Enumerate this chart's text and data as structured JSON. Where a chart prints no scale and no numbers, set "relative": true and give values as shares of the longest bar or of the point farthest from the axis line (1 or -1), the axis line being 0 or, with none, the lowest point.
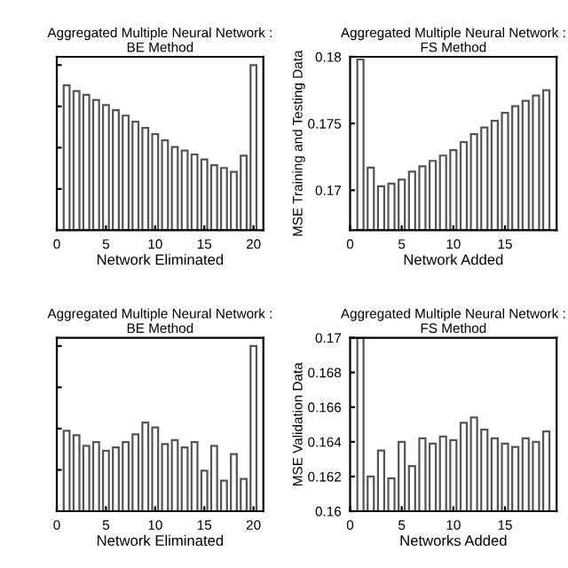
{
  "chart_data": [
    {
      "type": "bar",
      "title": "Aggregated Multiple Neural Network :\nBE Method",
      "xlabel": "Network Eliminated",
      "relative": true,
      "tick_labels": "x",
      "x": [
        1,
        2,
        3,
        4,
        5,
        6,
        7,
        8,
        9,
        10,
        11,
        12,
        13,
        14,
        15,
        16,
        17,
        18,
        19,
        20
      ],
      "xlim": [
        0,
        21
      ],
      "xticks": [
        0,
        5,
        10,
        15,
        20
      ],
      "color": "#ffffff",
      "values": [
        0.877,
        0.843,
        0.82,
        0.789,
        0.758,
        0.727,
        0.694,
        0.657,
        0.619,
        0.582,
        0.544,
        0.504,
        0.483,
        0.459,
        0.429,
        0.394,
        0.377,
        0.354,
        0.452,
        1
      ]
    },
    {
      "type": "bar",
      "title": "Aggregated Multiple Neural Network :\nFS Method",
      "xlabel": "Network Added",
      "ylabel": "MSE Training and Testing Data",
      "x": [
        1,
        2,
        3,
        4,
        5,
        6,
        7,
        8,
        9,
        10,
        11,
        12,
        13,
        14,
        15,
        16,
        17,
        18,
        19
      ],
      "xlim": [
        0,
        20
      ],
      "xticks": [
        0,
        5,
        10,
        15
      ],
      "ylim": [
        0.167,
        0.18
      ],
      "yticks": [
        0.17,
        0.175,
        0.18
      ],
      "color": "#ffffff",
      "values": [
        0.1798,
        0.1717,
        0.1703,
        0.1705,
        0.1708,
        0.1714,
        0.1718,
        0.1722,
        0.1726,
        0.173,
        0.1736,
        0.1742,
        0.1747,
        0.1752,
        0.1758,
        0.1763,
        0.1767,
        0.1771,
        0.1775
      ]
    },
    {
      "type": "bar",
      "title": "Aggregated Multiple Neural Network :\nBE Method",
      "xlabel": "Network Eliminated",
      "relative": true,
      "tick_labels": "x",
      "x": [
        1,
        2,
        3,
        4,
        5,
        6,
        7,
        8,
        9,
        10,
        11,
        12,
        13,
        14,
        15,
        16,
        17,
        18,
        19,
        20
      ],
      "xlim": [
        0,
        21
      ],
      "xticks": [
        0,
        5,
        10,
        15,
        20
      ],
      "color": "#ffffff",
      "values": [
        0.487,
        0.46,
        0.396,
        0.419,
        0.366,
        0.386,
        0.419,
        0.466,
        0.537,
        0.507,
        0.406,
        0.43,
        0.386,
        0.419,
        0.245,
        0.396,
        0.185,
        0.346,
        0.195,
        1
      ]
    },
    {
      "type": "bar",
      "title": "Aggregated Multiple Neural Network :\nFS Method",
      "xlabel": "Networks Added",
      "ylabel": "MSE Validation Data",
      "x": [
        1,
        2,
        3,
        4,
        5,
        6,
        7,
        8,
        9,
        10,
        11,
        12,
        13,
        14,
        15,
        16,
        17,
        18,
        19
      ],
      "xlim": [
        0,
        20
      ],
      "xticks": [
        0,
        5,
        10,
        15
      ],
      "ylim": [
        0.16,
        0.17
      ],
      "yticks": [
        0.16,
        0.162,
        0.164,
        0.166,
        0.168,
        0.17
      ],
      "color": "#ffffff",
      "values": [
        0.17,
        0.162,
        0.1635,
        0.1619,
        0.164,
        0.1626,
        0.1642,
        0.1639,
        0.1643,
        0.1641,
        0.1651,
        0.1654,
        0.1647,
        0.1642,
        0.1639,
        0.1637,
        0.1642,
        0.164,
        0.1646
      ]
    }
  ]
}
